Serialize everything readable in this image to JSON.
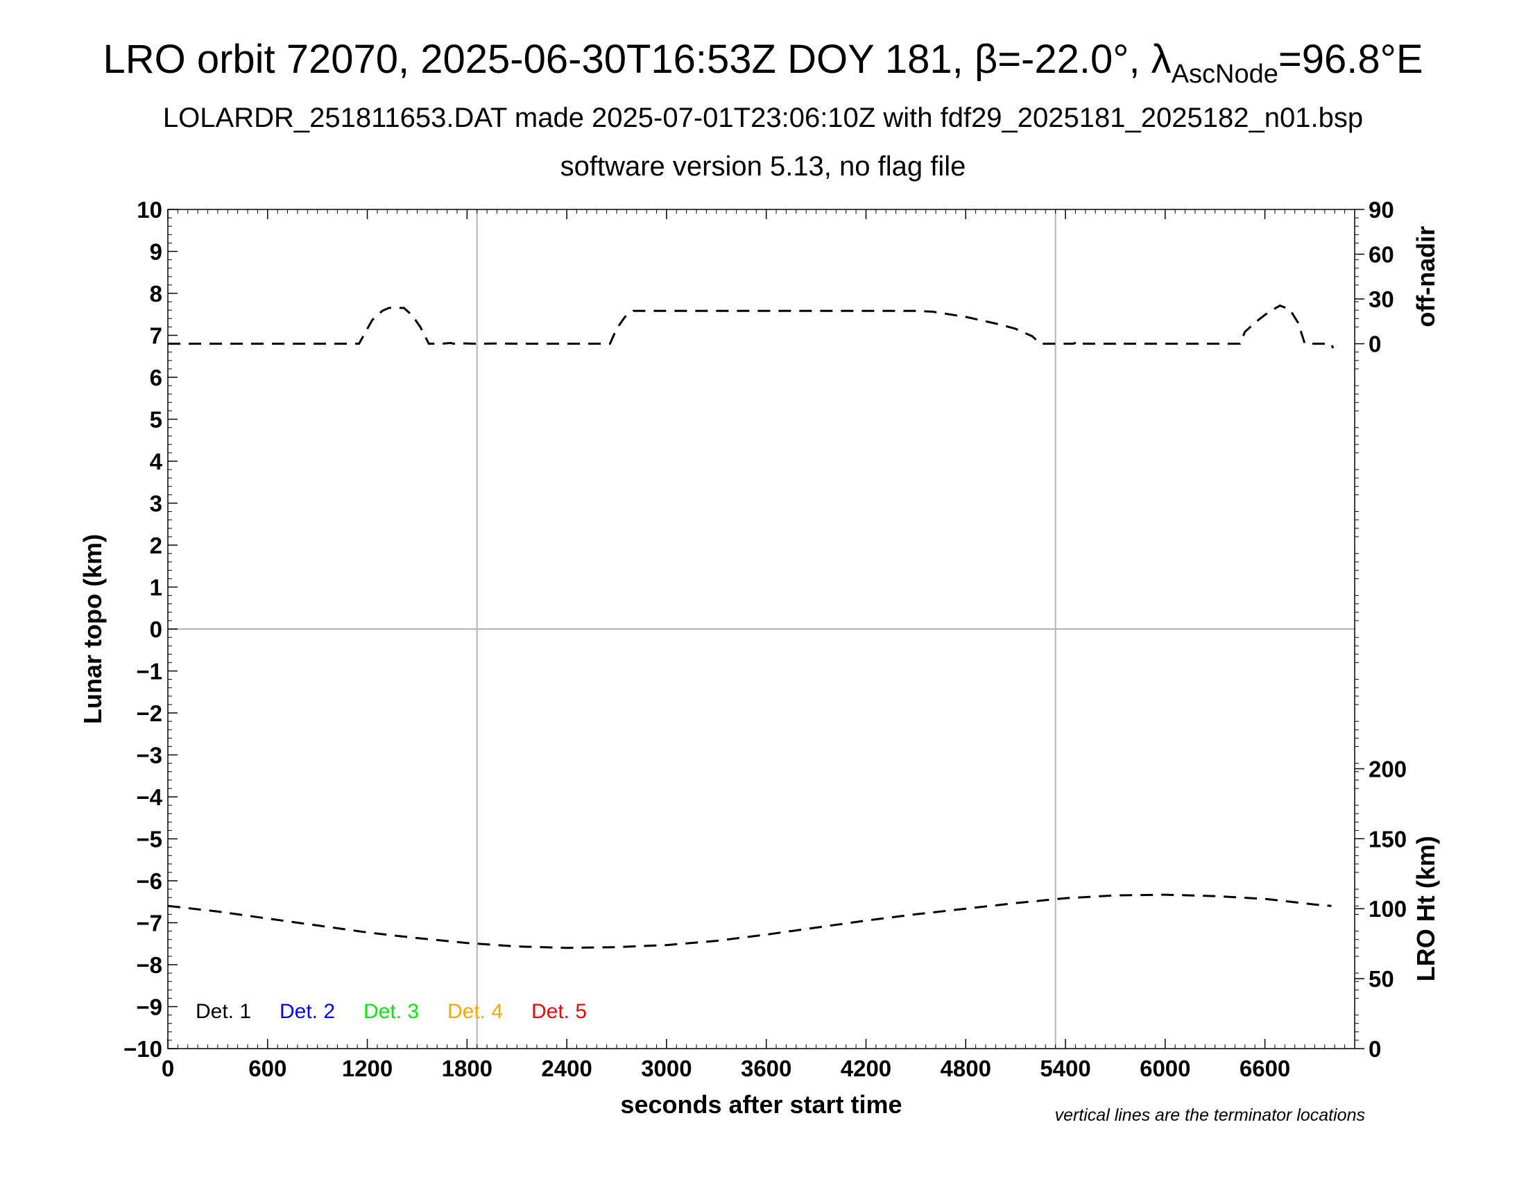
{
  "header": {
    "title_main": "LRO orbit 72070, 2025-06-30T16:53Z DOY 181, β=-22.0°, λ",
    "title_sub": "AscNode",
    "title_tail": "=96.8°E",
    "subtitle": "LOLARDR_251811653.DAT made 2025-07-01T23:06:10Z with fdf29_2025181_2025182_n01.bsp",
    "subtitle2": "software version 5.13, no flag file"
  },
  "note": "vertical lines are the terminator locations",
  "chart_data": {
    "type": "line",
    "xlabel": "seconds after start time",
    "ylabel": "Lunar topo (km)",
    "xlim": [
      0,
      7140
    ],
    "ylim": [
      -10,
      10
    ],
    "x_ticks": [
      0,
      600,
      1200,
      1800,
      2400,
      3000,
      3600,
      4200,
      4800,
      5400,
      6000,
      6600
    ],
    "y_ticks": [
      10,
      9,
      8,
      7,
      6,
      5,
      4,
      3,
      2,
      1,
      0,
      -1,
      -2,
      -3,
      -4,
      -5,
      -6,
      -7,
      -8,
      -9,
      -10
    ],
    "grid": {
      "horizontal_at_y": 0,
      "vertical_at_x": [
        1860,
        5340
      ]
    },
    "right_axis_top": {
      "label": "off-nadir",
      "range": [
        0,
        90
      ],
      "ticks": [
        90,
        60,
        30,
        0
      ],
      "maps_to_left": [
        6.8,
        10
      ]
    },
    "right_axis_bottom": {
      "label": "LRO Ht (km)",
      "range": [
        0,
        200
      ],
      "ticks": [
        200,
        150,
        100,
        50,
        0
      ],
      "maps_to_left": [
        -10,
        -3.33
      ]
    },
    "legend": {
      "placement": "bottom-left",
      "entries": [
        {
          "label": "Det. 1",
          "color": "#000000"
        },
        {
          "label": "Det. 2",
          "color": "#0000ff"
        },
        {
          "label": "Det. 3",
          "color": "#00ee00"
        },
        {
          "label": "Det. 4",
          "color": "#ffa500"
        },
        {
          "label": "Det. 5",
          "color": "#ff0000"
        }
      ]
    },
    "series": [
      {
        "role": "off-nadir",
        "axis": "right_axis_top",
        "style": "dashed",
        "color": "#000000",
        "points": [
          [
            0,
            0
          ],
          [
            1150,
            0
          ],
          [
            1180,
            6
          ],
          [
            1230,
            16
          ],
          [
            1290,
            22
          ],
          [
            1330,
            24
          ],
          [
            1420,
            24
          ],
          [
            1470,
            19
          ],
          [
            1520,
            11
          ],
          [
            1570,
            0
          ],
          [
            1650,
            0
          ],
          [
            1700,
            0.5
          ],
          [
            1720,
            0
          ],
          [
            1760,
            0.3
          ],
          [
            1850,
            0
          ],
          [
            2000,
            0.2
          ],
          [
            2100,
            0
          ],
          [
            2650,
            0
          ],
          [
            2660,
            0
          ],
          [
            2700,
            10
          ],
          [
            2750,
            18
          ],
          [
            2800,
            22
          ],
          [
            3000,
            22
          ],
          [
            3500,
            22
          ],
          [
            4000,
            22
          ],
          [
            4500,
            22
          ],
          [
            4600,
            21.5
          ],
          [
            4800,
            18
          ],
          [
            5000,
            13
          ],
          [
            5100,
            10
          ],
          [
            5200,
            5
          ],
          [
            5250,
            0
          ],
          [
            5450,
            0
          ],
          [
            5480,
            2
          ],
          [
            5510,
            0
          ],
          [
            5700,
            0
          ],
          [
            5720,
            1
          ],
          [
            5740,
            0
          ],
          [
            6450,
            0
          ],
          [
            6480,
            8
          ],
          [
            6550,
            15
          ],
          [
            6620,
            21
          ],
          [
            6690,
            25.5
          ],
          [
            6750,
            23
          ],
          [
            6800,
            14
          ],
          [
            6840,
            0
          ],
          [
            6920,
            0
          ],
          [
            6980,
            0
          ],
          [
            7000,
            0
          ],
          [
            7010,
            -3
          ]
        ]
      },
      {
        "role": "LRO height",
        "axis": "right_axis_bottom",
        "style": "dashed",
        "color": "#000000",
        "points": [
          [
            0,
            102
          ],
          [
            300,
            98
          ],
          [
            600,
            93
          ],
          [
            900,
            88
          ],
          [
            1200,
            83
          ],
          [
            1500,
            79
          ],
          [
            1800,
            75.5
          ],
          [
            2100,
            73
          ],
          [
            2400,
            72
          ],
          [
            2700,
            72.5
          ],
          [
            3000,
            74
          ],
          [
            3300,
            77
          ],
          [
            3600,
            81.5
          ],
          [
            3900,
            86.5
          ],
          [
            4200,
            91.5
          ],
          [
            4500,
            96
          ],
          [
            4800,
            100
          ],
          [
            5100,
            104
          ],
          [
            5400,
            107.5
          ],
          [
            5700,
            109.5
          ],
          [
            6000,
            110
          ],
          [
            6300,
            109
          ],
          [
            6600,
            107
          ],
          [
            6900,
            103
          ],
          [
            7000,
            102
          ]
        ]
      }
    ]
  }
}
